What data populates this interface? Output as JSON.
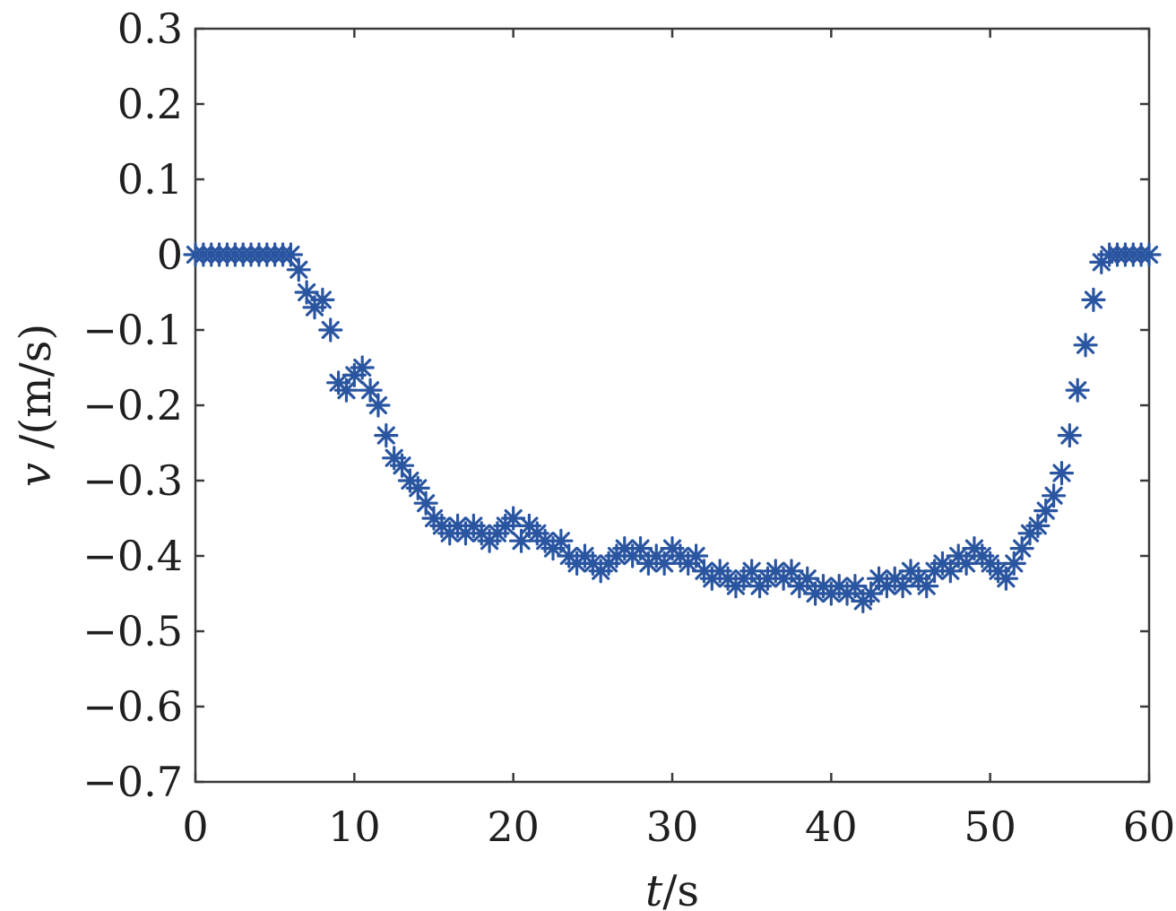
{
  "chart_data": {
    "type": "scatter",
    "marker": "asterisk",
    "color": "#2a55a0",
    "xlabel_italic": "t",
    "xlabel_rest": "/s",
    "ylabel_italic": "v",
    "ylabel_rest": " /(m/s)",
    "xlim": [
      0,
      60
    ],
    "ylim": [
      -0.7,
      0.3
    ],
    "xticks": [
      0,
      10,
      20,
      30,
      40,
      50,
      60
    ],
    "yticks": [
      0.3,
      0.2,
      0.1,
      0,
      -0.1,
      -0.2,
      -0.3,
      -0.4,
      -0.5,
      -0.6,
      -0.7
    ],
    "xtick_labels": [
      "0",
      "10",
      "20",
      "30",
      "40",
      "50",
      "60"
    ],
    "ytick_labels": [
      "0.3",
      "0.2",
      "0.1",
      "0",
      "−0.1",
      "−0.2",
      "−0.3",
      "−0.4",
      "−0.5",
      "−0.6",
      "−0.7"
    ],
    "grid": false,
    "series": [
      {
        "x": [
          0,
          0.5,
          1,
          1.5,
          2,
          2.5,
          3,
          3.5,
          4,
          4.5,
          5,
          5.5,
          6,
          6.5,
          7,
          7.5,
          8,
          8.5,
          9,
          9.5,
          10,
          10.5,
          11,
          11.5,
          12,
          12.5,
          13,
          13.5,
          14,
          14.5,
          15,
          15.5,
          16,
          16.5,
          17,
          17.5,
          18,
          18.5,
          19,
          19.5,
          20,
          20.5,
          21,
          21.5,
          22,
          22.5,
          23,
          23.5,
          24,
          24.5,
          25,
          25.5,
          26,
          26.5,
          27,
          27.5,
          28,
          28.5,
          29,
          29.5,
          30,
          30.5,
          31,
          31.5,
          32,
          32.5,
          33,
          33.5,
          34,
          34.5,
          35,
          35.5,
          36,
          36.5,
          37,
          37.5,
          38,
          38.5,
          39,
          39.5,
          40,
          40.5,
          41,
          41.5,
          42,
          42.5,
          43,
          43.5,
          44,
          44.5,
          45,
          45.5,
          46,
          46.5,
          47,
          47.5,
          48,
          48.5,
          49,
          49.5,
          50,
          50.5,
          51,
          51.5,
          52,
          52.5,
          53,
          53.5,
          54,
          54.5,
          55,
          55.5,
          56,
          56.5,
          57,
          57.5,
          58,
          58.5,
          59,
          59.5,
          60
        ],
        "y": [
          0,
          0,
          0,
          0,
          0,
          0,
          0,
          0,
          0,
          0,
          0,
          0,
          0,
          -0.02,
          -0.05,
          -0.07,
          -0.06,
          -0.1,
          -0.17,
          -0.18,
          -0.16,
          -0.15,
          -0.18,
          -0.2,
          -0.24,
          -0.27,
          -0.28,
          -0.3,
          -0.31,
          -0.33,
          -0.35,
          -0.36,
          -0.37,
          -0.36,
          -0.37,
          -0.36,
          -0.37,
          -0.38,
          -0.37,
          -0.36,
          -0.35,
          -0.38,
          -0.36,
          -0.37,
          -0.38,
          -0.39,
          -0.38,
          -0.4,
          -0.41,
          -0.4,
          -0.41,
          -0.42,
          -0.41,
          -0.4,
          -0.39,
          -0.4,
          -0.39,
          -0.41,
          -0.4,
          -0.41,
          -0.39,
          -0.4,
          -0.41,
          -0.4,
          -0.42,
          -0.43,
          -0.42,
          -0.43,
          -0.44,
          -0.43,
          -0.42,
          -0.44,
          -0.43,
          -0.42,
          -0.43,
          -0.42,
          -0.44,
          -0.43,
          -0.45,
          -0.44,
          -0.45,
          -0.44,
          -0.45,
          -0.44,
          -0.46,
          -0.45,
          -0.43,
          -0.44,
          -0.43,
          -0.44,
          -0.42,
          -0.43,
          -0.44,
          -0.42,
          -0.41,
          -0.42,
          -0.4,
          -0.41,
          -0.39,
          -0.4,
          -0.41,
          -0.42,
          -0.43,
          -0.41,
          -0.39,
          -0.37,
          -0.36,
          -0.34,
          -0.32,
          -0.29,
          -0.24,
          -0.18,
          -0.12,
          -0.06,
          -0.01,
          0,
          0,
          0,
          0,
          0,
          0
        ]
      }
    ]
  }
}
